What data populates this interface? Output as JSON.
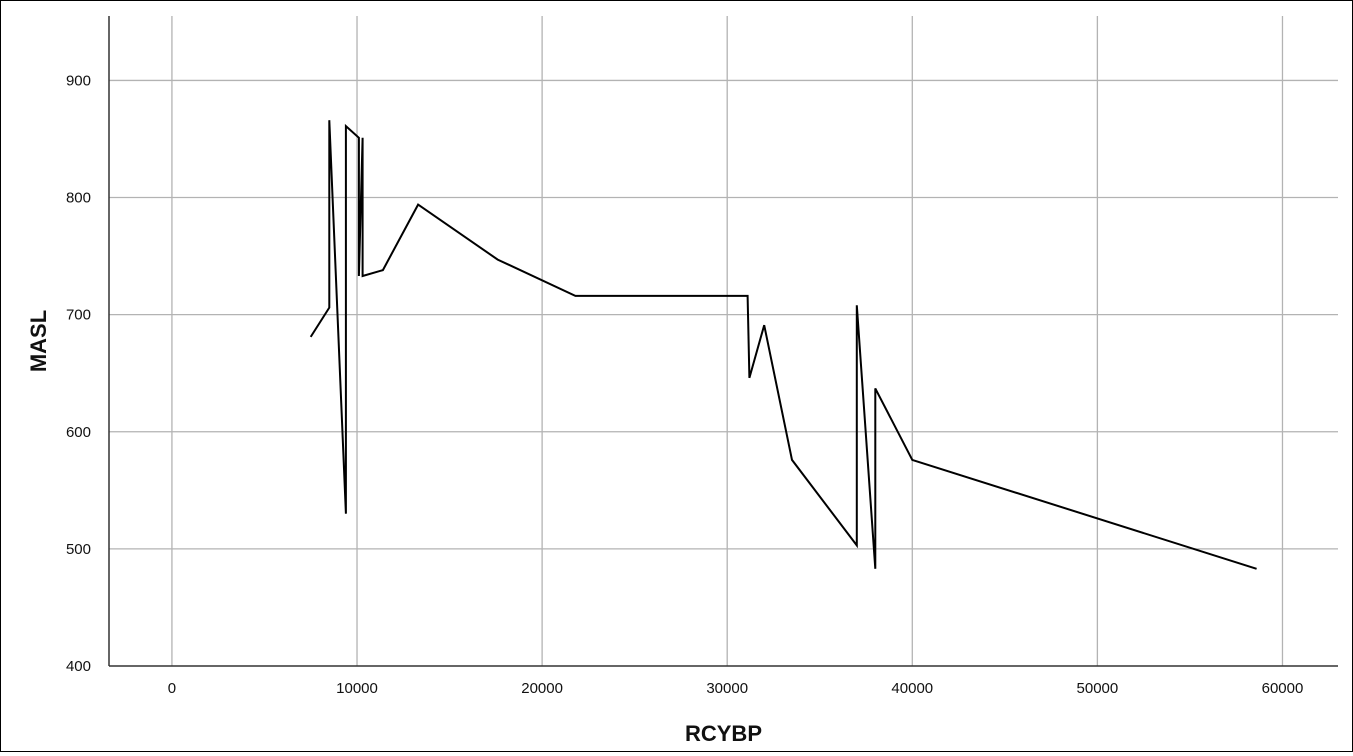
{
  "chart_data": {
    "type": "line",
    "title": "",
    "xlabel": "RCYBP",
    "ylabel": "MASL",
    "xlim": [
      -3400,
      63000
    ],
    "ylim": [
      400,
      955
    ],
    "x_ticks": [
      0,
      10000,
      20000,
      30000,
      40000,
      50000,
      60000
    ],
    "y_ticks": [
      400,
      500,
      600,
      700,
      800,
      900
    ],
    "grid": true,
    "legend": "none",
    "line_color": "#000000",
    "grid_color": "#b3b3b3",
    "series": [
      {
        "x": [
          7500,
          8500,
          8500,
          9400,
          9400,
          10100,
          10100,
          10300,
          10300,
          11400,
          13300,
          17600,
          21800,
          31100,
          31100,
          31200,
          32000,
          33500,
          37000,
          37000,
          38000,
          38000,
          40000,
          58600
        ],
        "y": [
          681,
          706,
          866,
          530,
          861,
          851,
          733,
          851,
          733,
          738,
          794,
          747,
          716,
          716,
          716,
          646,
          691,
          576,
          503,
          708,
          483,
          637,
          576,
          483
        ]
      }
    ]
  }
}
